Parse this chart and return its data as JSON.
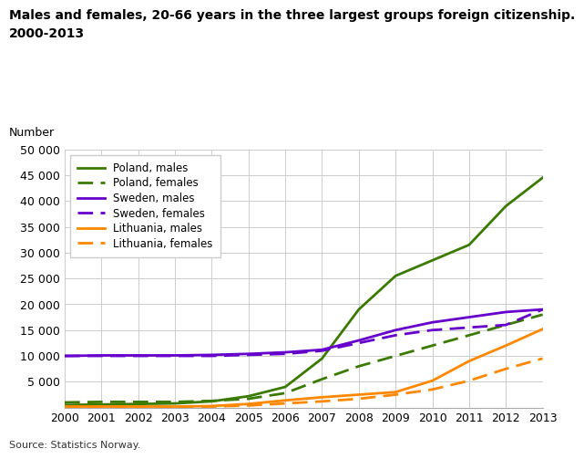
{
  "title_line1": "Males and females, 20-66 years in the three largest groups foreign citizenship.",
  "title_line2": "2000-2013",
  "ylabel": "Number",
  "source": "Source: Statistics Norway.",
  "years": [
    2000,
    2001,
    2002,
    2003,
    2004,
    2005,
    2006,
    2007,
    2008,
    2009,
    2010,
    2011,
    2012,
    2013
  ],
  "poland_males": [
    500,
    600,
    700,
    800,
    1200,
    2200,
    4000,
    9500,
    19000,
    25500,
    28500,
    31500,
    39000,
    44500
  ],
  "poland_females": [
    1000,
    1100,
    1100,
    1100,
    1300,
    1700,
    2800,
    5500,
    8000,
    10000,
    12000,
    14000,
    16000,
    18000
  ],
  "sweden_males": [
    10000,
    10100,
    10100,
    10100,
    10200,
    10400,
    10700,
    11200,
    13000,
    15000,
    16500,
    17500,
    18500,
    19000
  ],
  "sweden_females": [
    10000,
    10000,
    10000,
    10000,
    10000,
    10200,
    10400,
    11000,
    12500,
    14000,
    15000,
    15500,
    16000,
    19000
  ],
  "lithuania_males": [
    200,
    200,
    200,
    200,
    300,
    700,
    1400,
    2000,
    2500,
    3000,
    5200,
    9000,
    12000,
    15200
  ],
  "lithuania_females": [
    100,
    100,
    100,
    100,
    200,
    400,
    800,
    1200,
    1700,
    2500,
    3500,
    5200,
    7500,
    9500
  ],
  "color_poland": "#3a7a00",
  "color_sweden": "#6600cc",
  "color_lithuania": "#ff8800",
  "ylim": [
    0,
    50000
  ],
  "yticks": [
    0,
    5000,
    10000,
    15000,
    20000,
    25000,
    30000,
    35000,
    40000,
    45000,
    50000
  ],
  "ytick_labels": [
    "",
    "5 000",
    "10 000",
    "15 000",
    "20 000",
    "25 000",
    "30 000",
    "35 000",
    "40 000",
    "45 000",
    "50 000"
  ],
  "background_color": "#ffffff",
  "grid_color": "#cccccc"
}
